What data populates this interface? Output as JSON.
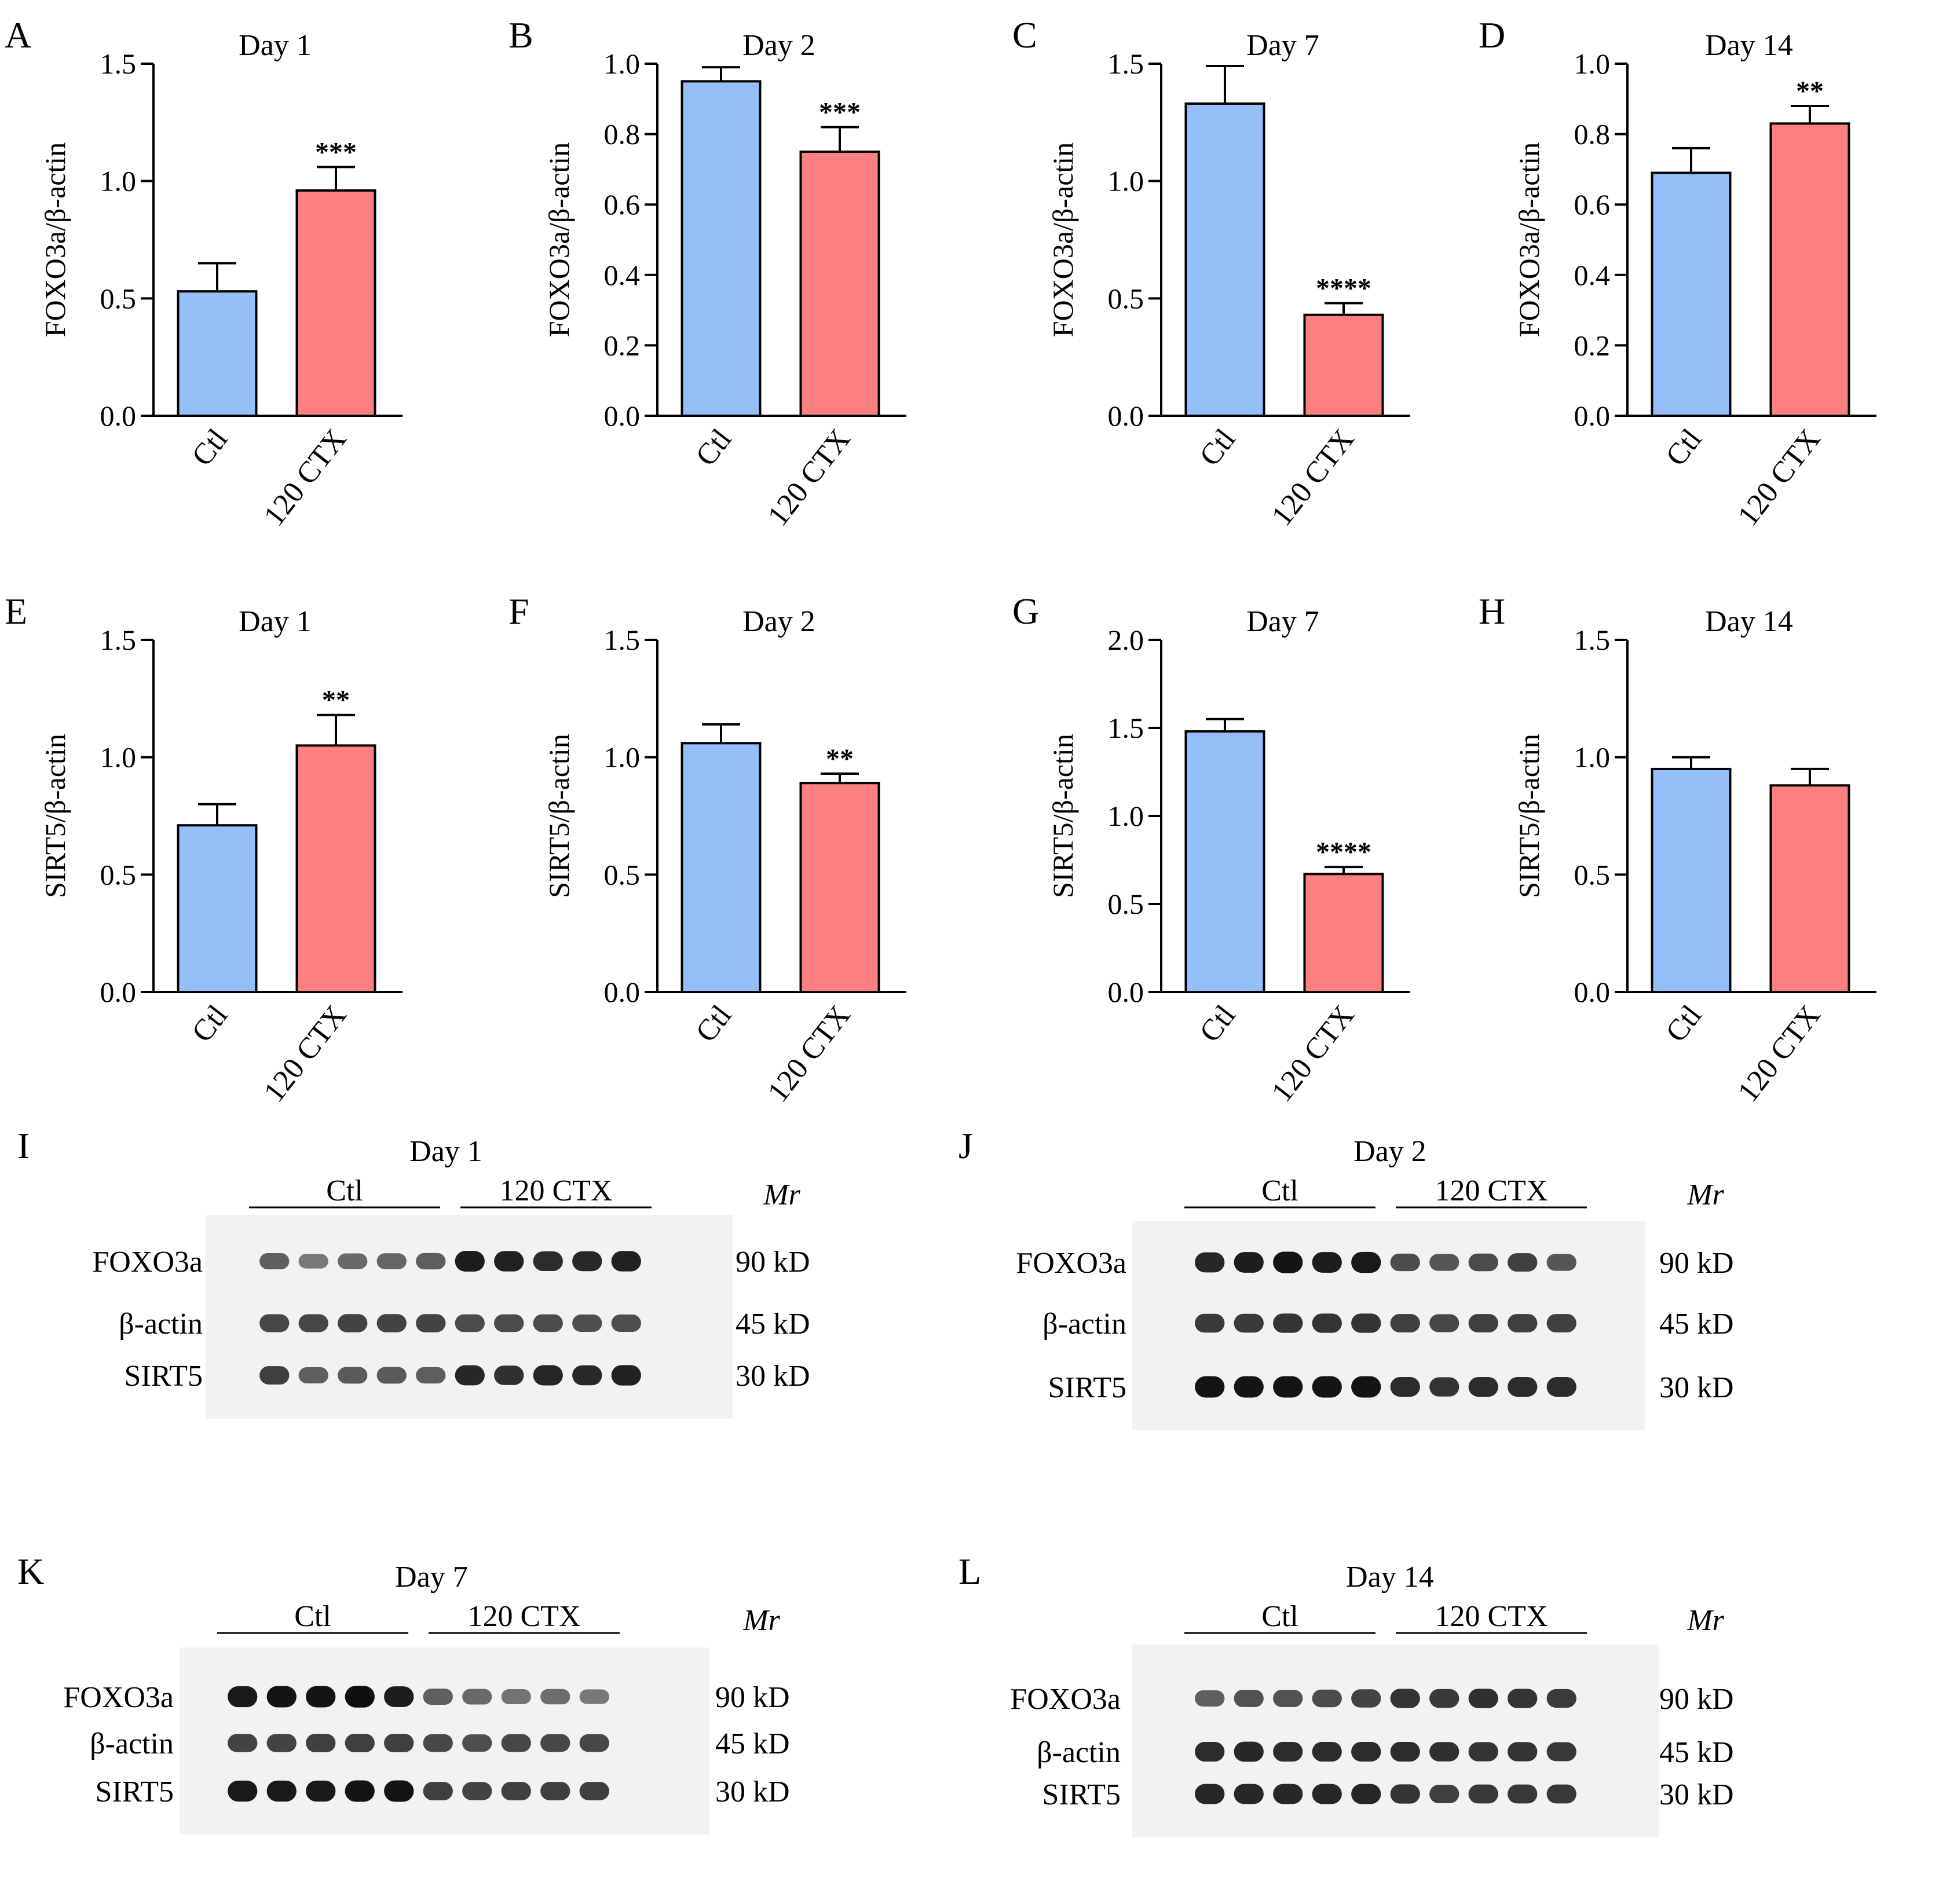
{
  "chart_data": [
    {
      "panel": "A",
      "type": "bar",
      "title": "Day 1",
      "ylabel": "FOXO3a/β-actin",
      "categories": [
        "Ctl",
        "120 CTX"
      ],
      "values": [
        0.53,
        0.96
      ],
      "errors": [
        0.12,
        0.1
      ],
      "ylim": [
        0,
        1.5
      ],
      "yticks": [
        "0.0",
        "0.5",
        "1.0",
        "1.5"
      ],
      "significance": [
        "",
        "***"
      ]
    },
    {
      "panel": "B",
      "type": "bar",
      "title": "Day 2",
      "ylabel": "FOXO3a/β-actin",
      "categories": [
        "Ctl",
        "120 CTX"
      ],
      "values": [
        0.95,
        0.75
      ],
      "errors": [
        0.04,
        0.07
      ],
      "ylim": [
        0,
        1.0
      ],
      "yticks": [
        "0.0",
        "0.2",
        "0.4",
        "0.6",
        "0.8",
        "1.0"
      ],
      "significance": [
        "",
        "***"
      ]
    },
    {
      "panel": "C",
      "type": "bar",
      "title": "Day 7",
      "ylabel": "FOXO3a/β-actin",
      "categories": [
        "Ctl",
        "120 CTX"
      ],
      "values": [
        1.33,
        0.43
      ],
      "errors": [
        0.16,
        0.05
      ],
      "ylim": [
        0,
        1.5
      ],
      "yticks": [
        "0.0",
        "0.5",
        "1.0",
        "1.5"
      ],
      "significance": [
        "",
        "****"
      ]
    },
    {
      "panel": "D",
      "type": "bar",
      "title": "Day 14",
      "ylabel": "FOXO3a/β-actin",
      "categories": [
        "Ctl",
        "120 CTX"
      ],
      "values": [
        0.69,
        0.83
      ],
      "errors": [
        0.07,
        0.05
      ],
      "ylim": [
        0,
        1.0
      ],
      "yticks": [
        "0.0",
        "0.2",
        "0.4",
        "0.6",
        "0.8",
        "1.0"
      ],
      "significance": [
        "",
        "**"
      ]
    },
    {
      "panel": "E",
      "type": "bar",
      "title": "Day 1",
      "ylabel": "SIRT5/β-actin",
      "categories": [
        "Ctl",
        "120 CTX"
      ],
      "values": [
        0.71,
        1.05
      ],
      "errors": [
        0.09,
        0.13
      ],
      "ylim": [
        0,
        1.5
      ],
      "yticks": [
        "0.0",
        "0.5",
        "1.0",
        "1.5"
      ],
      "significance": [
        "",
        "**"
      ]
    },
    {
      "panel": "F",
      "type": "bar",
      "title": "Day 2",
      "ylabel": "SIRT5/β-actin",
      "categories": [
        "Ctl",
        "120 CTX"
      ],
      "values": [
        1.06,
        0.89
      ],
      "errors": [
        0.08,
        0.04
      ],
      "ylim": [
        0,
        1.5
      ],
      "yticks": [
        "0.0",
        "0.5",
        "1.0",
        "1.5"
      ],
      "significance": [
        "",
        "**"
      ]
    },
    {
      "panel": "G",
      "type": "bar",
      "title": "Day 7",
      "ylabel": "SIRT5/β-actin",
      "categories": [
        "Ctl",
        "120 CTX"
      ],
      "values": [
        1.48,
        0.67
      ],
      "errors": [
        0.07,
        0.04
      ],
      "ylim": [
        0,
        2.0
      ],
      "yticks": [
        "0.0",
        "0.5",
        "1.0",
        "1.5",
        "2.0"
      ],
      "significance": [
        "",
        "****"
      ]
    },
    {
      "panel": "H",
      "type": "bar",
      "title": "Day 14",
      "ylabel": "SIRT5/β-actin",
      "categories": [
        "Ctl",
        "120 CTX"
      ],
      "values": [
        0.95,
        0.88
      ],
      "errors": [
        0.05,
        0.07
      ],
      "ylim": [
        0,
        1.5
      ],
      "yticks": [
        "0.0",
        "0.5",
        "1.0",
        "1.5"
      ],
      "significance": [
        "",
        ""
      ]
    }
  ],
  "colors": {
    "ctl": "#94bff9",
    "ctx": "#fc8080"
  },
  "blots": [
    {
      "panel": "I",
      "title": "Day 1",
      "groups": [
        "Ctl",
        "120 CTX"
      ],
      "mr_label": "Mr",
      "rows": [
        {
          "protein": "FOXO3a",
          "size": "90 kD",
          "intensity": [
            0.55,
            0.42,
            0.5,
            0.52,
            0.56,
            0.9,
            0.88,
            0.82,
            0.84,
            0.88
          ]
        },
        {
          "protein": "β-actin",
          "size": "45 kD",
          "intensity": [
            0.68,
            0.68,
            0.7,
            0.7,
            0.7,
            0.66,
            0.66,
            0.66,
            0.64,
            0.64
          ]
        },
        {
          "protein": "SIRT5",
          "size": "30 kD",
          "intensity": [
            0.72,
            0.55,
            0.58,
            0.58,
            0.56,
            0.85,
            0.8,
            0.86,
            0.84,
            0.88
          ]
        }
      ]
    },
    {
      "panel": "J",
      "title": "Day 2",
      "groups": [
        "Ctl",
        "120 CTX"
      ],
      "mr_label": "Mr",
      "rows": [
        {
          "protein": "FOXO3a",
          "size": "90 kD",
          "intensity": [
            0.85,
            0.9,
            0.95,
            0.9,
            0.92,
            0.65,
            0.6,
            0.66,
            0.72,
            0.6
          ]
        },
        {
          "protein": "β-actin",
          "size": "45 kD",
          "intensity": [
            0.75,
            0.75,
            0.78,
            0.78,
            0.78,
            0.72,
            0.68,
            0.72,
            0.72,
            0.72
          ]
        },
        {
          "protein": "SIRT5",
          "size": "30 kD",
          "intensity": [
            0.95,
            0.95,
            0.95,
            0.95,
            0.95,
            0.82,
            0.78,
            0.82,
            0.82,
            0.82
          ]
        }
      ]
    },
    {
      "panel": "K",
      "title": "Day 7",
      "groups": [
        "Ctl",
        "120 CTX"
      ],
      "mr_label": "Mr",
      "rows": [
        {
          "protein": "FOXO3a",
          "size": "90 kD",
          "intensity": [
            0.92,
            0.95,
            0.95,
            0.98,
            0.9,
            0.55,
            0.5,
            0.45,
            0.48,
            0.42
          ]
        },
        {
          "protein": "β-actin",
          "size": "45 kD",
          "intensity": [
            0.7,
            0.7,
            0.72,
            0.72,
            0.72,
            0.68,
            0.64,
            0.68,
            0.68,
            0.68
          ]
        },
        {
          "protein": "SIRT5",
          "size": "30 kD",
          "intensity": [
            0.92,
            0.92,
            0.92,
            0.95,
            0.95,
            0.72,
            0.7,
            0.72,
            0.72,
            0.72
          ]
        }
      ]
    },
    {
      "panel": "L",
      "title": "Day 14",
      "groups": [
        "Ctl",
        "120 CTX"
      ],
      "mr_label": "Mr",
      "rows": [
        {
          "protein": "FOXO3a",
          "size": "90 kD",
          "intensity": [
            0.55,
            0.62,
            0.62,
            0.66,
            0.7,
            0.78,
            0.75,
            0.8,
            0.78,
            0.74
          ]
        },
        {
          "protein": "β-actin",
          "size": "45 kD",
          "intensity": [
            0.82,
            0.85,
            0.82,
            0.82,
            0.82,
            0.82,
            0.8,
            0.78,
            0.78,
            0.76
          ]
        },
        {
          "protein": "SIRT5",
          "size": "30 kD",
          "intensity": [
            0.85,
            0.85,
            0.85,
            0.85,
            0.85,
            0.78,
            0.72,
            0.76,
            0.76,
            0.76
          ]
        }
      ]
    }
  ]
}
